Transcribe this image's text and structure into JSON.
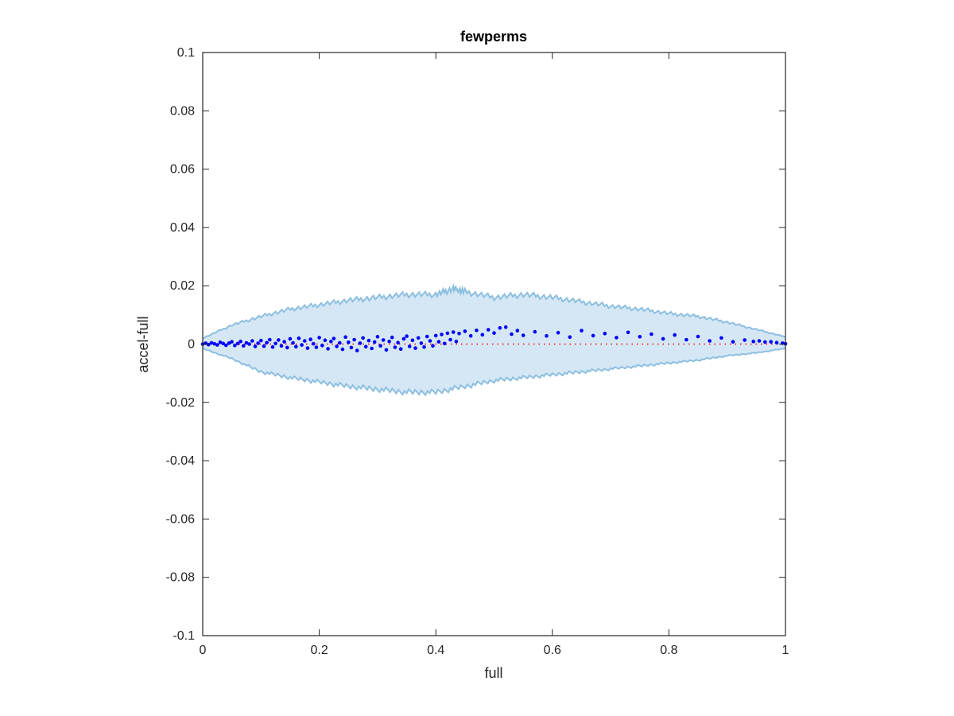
{
  "chart_data": {
    "type": "scatter",
    "title": "fewperms",
    "xlabel": "full",
    "ylabel": "accel-full",
    "xlim": [
      0,
      1
    ],
    "ylim": [
      -0.1,
      0.1
    ],
    "xticks": [
      "0",
      "0.2",
      "0.4",
      "0.6",
      "0.8",
      "1"
    ],
    "yticks": [
      "0.1",
      "0.08",
      "0.06",
      "0.04",
      "0.02",
      "0",
      "-0.02",
      "-0.04",
      "-0.06",
      "-0.08",
      "-0.1"
    ],
    "grid": false,
    "legend": "none",
    "band": {
      "upper": [
        [
          0,
          0.002
        ],
        [
          0.05,
          0.0065
        ],
        [
          0.1,
          0.0095
        ],
        [
          0.15,
          0.012
        ],
        [
          0.2,
          0.0135
        ],
        [
          0.25,
          0.015
        ],
        [
          0.3,
          0.016
        ],
        [
          0.35,
          0.017
        ],
        [
          0.4,
          0.017
        ],
        [
          0.43,
          0.019
        ],
        [
          0.45,
          0.018
        ],
        [
          0.5,
          0.016
        ],
        [
          0.55,
          0.017
        ],
        [
          0.6,
          0.016
        ],
        [
          0.65,
          0.0145
        ],
        [
          0.7,
          0.013
        ],
        [
          0.75,
          0.012
        ],
        [
          0.8,
          0.0105
        ],
        [
          0.85,
          0.0095
        ],
        [
          0.9,
          0.0075
        ],
        [
          0.95,
          0.005
        ],
        [
          1,
          0.0025
        ]
      ],
      "lower": [
        [
          0,
          -0.0015
        ],
        [
          0.05,
          -0.005
        ],
        [
          0.1,
          -0.0095
        ],
        [
          0.15,
          -0.0115
        ],
        [
          0.2,
          -0.013
        ],
        [
          0.25,
          -0.0145
        ],
        [
          0.3,
          -0.0155
        ],
        [
          0.35,
          -0.0165
        ],
        [
          0.4,
          -0.0165
        ],
        [
          0.45,
          -0.0145
        ],
        [
          0.5,
          -0.0125
        ],
        [
          0.55,
          -0.0115
        ],
        [
          0.6,
          -0.0105
        ],
        [
          0.65,
          -0.0095
        ],
        [
          0.7,
          -0.0085
        ],
        [
          0.75,
          -0.0075
        ],
        [
          0.8,
          -0.0065
        ],
        [
          0.85,
          -0.0055
        ],
        [
          0.9,
          -0.004
        ],
        [
          0.95,
          -0.003
        ],
        [
          1,
          -0.0015
        ]
      ]
    },
    "reference_line_y": 0,
    "series": [
      {
        "points": [
          [
            0.0,
            0.0
          ],
          [
            0.005,
            0.0003
          ],
          [
            0.01,
            -0.0002
          ],
          [
            0.015,
            0.0004
          ],
          [
            0.02,
            0.0001
          ],
          [
            0.025,
            -0.0003
          ],
          [
            0.03,
            0.0006
          ],
          [
            0.035,
            0.0002
          ],
          [
            0.04,
            -0.0004
          ],
          [
            0.045,
            0.0003
          ],
          [
            0.05,
            0.0008
          ],
          [
            0.055,
            -0.0005
          ],
          [
            0.06,
            0.0002
          ],
          [
            0.065,
            0.0009
          ],
          [
            0.07,
            -0.0006
          ],
          [
            0.075,
            0.0004
          ],
          [
            0.08,
            0.0
          ],
          [
            0.085,
            0.0011
          ],
          [
            0.09,
            -0.0008
          ],
          [
            0.095,
            0.0003
          ],
          [
            0.1,
            0.0012
          ],
          [
            0.105,
            -0.0007
          ],
          [
            0.11,
            0.0005
          ],
          [
            0.115,
            0.0015
          ],
          [
            0.12,
            -0.001
          ],
          [
            0.125,
            0.0002
          ],
          [
            0.13,
            0.0014
          ],
          [
            0.135,
            -0.0006
          ],
          [
            0.14,
            0.0008
          ],
          [
            0.145,
            -0.0012
          ],
          [
            0.15,
            0.0018
          ],
          [
            0.155,
            0.0004
          ],
          [
            0.16,
            -0.0009
          ],
          [
            0.165,
            0.002
          ],
          [
            0.17,
            -0.0003
          ],
          [
            0.175,
            0.0011
          ],
          [
            0.18,
            -0.0014
          ],
          [
            0.185,
            0.0016
          ],
          [
            0.19,
            0.0001
          ],
          [
            0.195,
            -0.0011
          ],
          [
            0.2,
            0.0022
          ],
          [
            0.205,
            -0.0005
          ],
          [
            0.21,
            0.0013
          ],
          [
            0.215,
            -0.0016
          ],
          [
            0.22,
            0.0009
          ],
          [
            0.225,
            0.0019
          ],
          [
            0.23,
            -0.0008
          ],
          [
            0.235,
            0.0004
          ],
          [
            0.24,
            -0.0018
          ],
          [
            0.245,
            0.0024
          ],
          [
            0.25,
            0.0006
          ],
          [
            0.255,
            -0.0012
          ],
          [
            0.26,
            0.0015
          ],
          [
            0.265,
            -0.0022
          ],
          [
            0.27,
            0.0003
          ],
          [
            0.275,
            0.0021
          ],
          [
            0.28,
            -0.0009
          ],
          [
            0.285,
            0.0012
          ],
          [
            0.29,
            -0.0015
          ],
          [
            0.295,
            0.0007
          ],
          [
            0.3,
            0.0025
          ],
          [
            0.305,
            -0.0006
          ],
          [
            0.31,
            0.0014
          ],
          [
            0.315,
            -0.002
          ],
          [
            0.32,
            0.0009
          ],
          [
            0.325,
            0.0023
          ],
          [
            0.33,
            -0.0011
          ],
          [
            0.335,
            0.0005
          ],
          [
            0.34,
            -0.0017
          ],
          [
            0.345,
            0.0018
          ],
          [
            0.35,
            0.0027
          ],
          [
            0.355,
            -0.0008
          ],
          [
            0.36,
            0.0013
          ],
          [
            0.365,
            -0.0014
          ],
          [
            0.37,
            0.0021
          ],
          [
            0.375,
            0.0003
          ],
          [
            0.38,
            -0.001
          ],
          [
            0.385,
            0.0026
          ],
          [
            0.39,
            0.0011
          ],
          [
            0.395,
            -0.0006
          ],
          [
            0.4,
            0.0029
          ],
          [
            0.405,
            0.0008
          ],
          [
            0.41,
            0.0033
          ],
          [
            0.415,
            0.0002
          ],
          [
            0.42,
            0.0037
          ],
          [
            0.425,
            0.0015
          ],
          [
            0.43,
            0.0041
          ],
          [
            0.435,
            0.0009
          ],
          [
            0.44,
            0.0036
          ],
          [
            0.45,
            0.0044
          ],
          [
            0.46,
            0.0028
          ],
          [
            0.47,
            0.0047
          ],
          [
            0.48,
            0.0032
          ],
          [
            0.49,
            0.0049
          ],
          [
            0.5,
            0.0038
          ],
          [
            0.51,
            0.0055
          ],
          [
            0.52,
            0.0058
          ],
          [
            0.53,
            0.0034
          ],
          [
            0.54,
            0.0046
          ],
          [
            0.55,
            0.003
          ],
          [
            0.57,
            0.0042
          ],
          [
            0.59,
            0.0028
          ],
          [
            0.61,
            0.0039
          ],
          [
            0.63,
            0.0024
          ],
          [
            0.65,
            0.0046
          ],
          [
            0.67,
            0.0029
          ],
          [
            0.69,
            0.0036
          ],
          [
            0.71,
            0.0022
          ],
          [
            0.73,
            0.004
          ],
          [
            0.75,
            0.0025
          ],
          [
            0.77,
            0.0034
          ],
          [
            0.79,
            0.0018
          ],
          [
            0.81,
            0.0031
          ],
          [
            0.83,
            0.0015
          ],
          [
            0.85,
            0.0026
          ],
          [
            0.87,
            0.0011
          ],
          [
            0.89,
            0.0021
          ],
          [
            0.91,
            0.0008
          ],
          [
            0.93,
            0.0014
          ],
          [
            0.945,
            0.0009
          ],
          [
            0.955,
            0.0011
          ],
          [
            0.965,
            0.0007
          ],
          [
            0.975,
            0.0008
          ],
          [
            0.985,
            0.0005
          ],
          [
            0.995,
            0.0003
          ],
          [
            1.0,
            0.0001
          ]
        ]
      }
    ]
  }
}
